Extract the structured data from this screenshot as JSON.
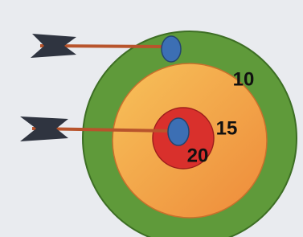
{
  "target": {
    "rings": [
      {
        "label": "10"
      },
      {
        "label": "15"
      },
      {
        "label": "20"
      }
    ]
  }
}
